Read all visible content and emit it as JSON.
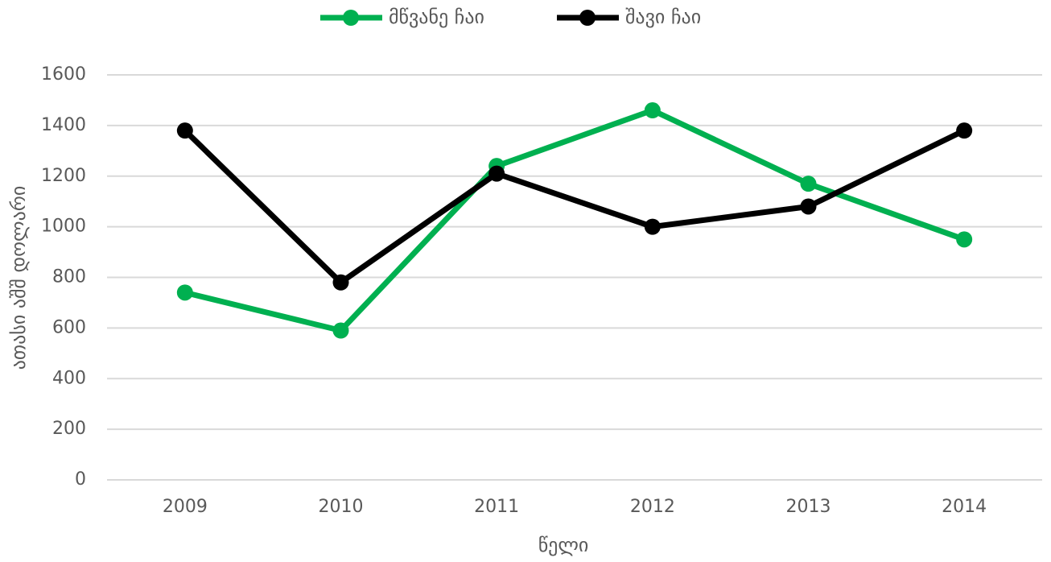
{
  "chart_data": {
    "type": "line",
    "xlabel": "წელი",
    "ylabel": "ათასი აშშ დოლარი",
    "categories": [
      "2009",
      "2010",
      "2011",
      "2012",
      "2013",
      "2014"
    ],
    "series": [
      {
        "name": "მწვანე ჩაი",
        "color": "#00b050",
        "values": [
          740,
          590,
          1240,
          1460,
          1170,
          950
        ]
      },
      {
        "name": "შავი ჩაი",
        "color": "#000000",
        "values": [
          1380,
          780,
          1210,
          1000,
          1080,
          1380
        ]
      }
    ],
    "ylim": [
      0,
      1600
    ],
    "yticks": [
      0,
      200,
      400,
      600,
      800,
      1000,
      1200,
      1400,
      1600
    ],
    "grid": true,
    "legend": "top"
  }
}
